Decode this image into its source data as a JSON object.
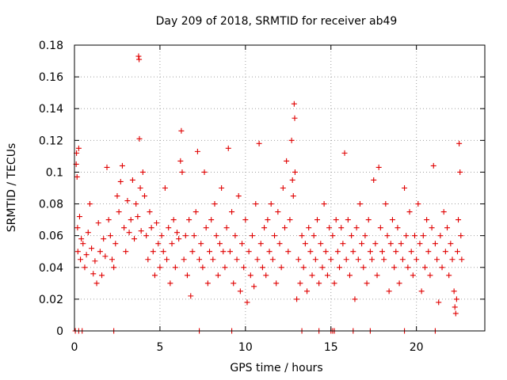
{
  "chart_data": {
    "type": "scatter",
    "title": "Day 209 of 2018, SRMTID for receiver ab49",
    "xlabel": "GPS time / hours",
    "ylabel": "SRMTID / TECUs",
    "xlim": [
      0,
      24
    ],
    "ylim": [
      0,
      0.18
    ],
    "x_ticks": [
      0,
      5,
      10,
      15,
      20
    ],
    "x_tick_labels": [
      "0",
      "5",
      "10",
      "15",
      "20"
    ],
    "y_ticks": [
      0,
      0.02,
      0.04,
      0.06,
      0.08,
      0.1,
      0.12,
      0.14,
      0.16,
      0.18
    ],
    "y_tick_labels": [
      "0",
      "0.02",
      "0.04",
      "0.06",
      "0.08",
      "0.1",
      "0.12",
      "0.14",
      "0.16",
      "0.18"
    ],
    "grid": true,
    "marker": "+",
    "series": [
      {
        "name": "SRMTID",
        "color": "#e00000",
        "points": [
          [
            0.1,
            0.105
          ],
          [
            0.12,
            0.112
          ],
          [
            0.15,
            0.097
          ],
          [
            0.18,
            0.065
          ],
          [
            0.2,
            0.05
          ],
          [
            0.25,
            0.115
          ],
          [
            0.3,
            0.072
          ],
          [
            0.35,
            0.045
          ],
          [
            0.4,
            0.058
          ],
          [
            0.5,
            0.055
          ],
          [
            0.6,
            0.04
          ],
          [
            0.7,
            0.048
          ],
          [
            0.8,
            0.062
          ],
          [
            0.9,
            0.08
          ],
          [
            1.0,
            0.052
          ],
          [
            1.1,
            0.036
          ],
          [
            1.2,
            0.044
          ],
          [
            1.3,
            0.03
          ],
          [
            1.4,
            0.068
          ],
          [
            1.5,
            0.05
          ],
          [
            1.6,
            0.035
          ],
          [
            1.7,
            0.058
          ],
          [
            1.8,
            0.047
          ],
          [
            1.9,
            0.103
          ],
          [
            2.0,
            0.07
          ],
          [
            2.1,
            0.06
          ],
          [
            2.2,
            0.045
          ],
          [
            2.3,
            0.04
          ],
          [
            2.4,
            0.055
          ],
          [
            2.5,
            0.085
          ],
          [
            2.6,
            0.075
          ],
          [
            2.7,
            0.094
          ],
          [
            2.8,
            0.104
          ],
          [
            2.9,
            0.065
          ],
          [
            3.0,
            0.05
          ],
          [
            3.1,
            0.082
          ],
          [
            3.2,
            0.062
          ],
          [
            3.3,
            0.07
          ],
          [
            3.4,
            0.095
          ],
          [
            3.5,
            0.058
          ],
          [
            3.6,
            0.08
          ],
          [
            3.7,
            0.072
          ],
          [
            3.75,
            0.173
          ],
          [
            3.78,
            0.171
          ],
          [
            3.8,
            0.121
          ],
          [
            3.85,
            0.09
          ],
          [
            3.9,
            0.063
          ],
          [
            4.0,
            0.1
          ],
          [
            4.1,
            0.085
          ],
          [
            4.2,
            0.06
          ],
          [
            4.3,
            0.045
          ],
          [
            4.4,
            0.075
          ],
          [
            4.5,
            0.065
          ],
          [
            4.6,
            0.05
          ],
          [
            4.7,
            0.035
          ],
          [
            4.8,
            0.068
          ],
          [
            4.9,
            0.055
          ],
          [
            5.0,
            0.04
          ],
          [
            5.1,
            0.06
          ],
          [
            5.2,
            0.05
          ],
          [
            5.3,
            0.09
          ],
          [
            5.4,
            0.045
          ],
          [
            5.5,
            0.065
          ],
          [
            5.6,
            0.03
          ],
          [
            5.7,
            0.055
          ],
          [
            5.8,
            0.07
          ],
          [
            5.9,
            0.04
          ],
          [
            6.0,
            0.062
          ],
          [
            6.1,
            0.058
          ],
          [
            6.2,
            0.107
          ],
          [
            6.25,
            0.126
          ],
          [
            6.3,
            0.1
          ],
          [
            6.4,
            0.045
          ],
          [
            6.5,
            0.06
          ],
          [
            6.6,
            0.035
          ],
          [
            6.7,
            0.07
          ],
          [
            6.8,
            0.022
          ],
          [
            6.9,
            0.05
          ],
          [
            7.0,
            0.06
          ],
          [
            7.1,
            0.075
          ],
          [
            7.2,
            0.113
          ],
          [
            7.3,
            0.045
          ],
          [
            7.4,
            0.055
          ],
          [
            7.5,
            0.04
          ],
          [
            7.6,
            0.1
          ],
          [
            7.7,
            0.065
          ],
          [
            7.8,
            0.03
          ],
          [
            7.9,
            0.05
          ],
          [
            8.0,
            0.07
          ],
          [
            8.1,
            0.045
          ],
          [
            8.2,
            0.08
          ],
          [
            8.3,
            0.06
          ],
          [
            8.4,
            0.035
          ],
          [
            8.5,
            0.055
          ],
          [
            8.6,
            0.09
          ],
          [
            8.7,
            0.05
          ],
          [
            8.8,
            0.04
          ],
          [
            8.9,
            0.065
          ],
          [
            9.0,
            0.115
          ],
          [
            9.1,
            0.05
          ],
          [
            9.2,
            0.075
          ],
          [
            9.3,
            0.03
          ],
          [
            9.4,
            0.06
          ],
          [
            9.5,
            0.045
          ],
          [
            9.6,
            0.085
          ],
          [
            9.7,
            0.025
          ],
          [
            9.8,
            0.055
          ],
          [
            9.9,
            0.04
          ],
          [
            10.0,
            0.07
          ],
          [
            10.1,
            0.018
          ],
          [
            10.2,
            0.05
          ],
          [
            10.3,
            0.035
          ],
          [
            10.4,
            0.06
          ],
          [
            10.5,
            0.028
          ],
          [
            10.6,
            0.08
          ],
          [
            10.7,
            0.045
          ],
          [
            10.8,
            0.118
          ],
          [
            10.9,
            0.055
          ],
          [
            11.0,
            0.04
          ],
          [
            11.1,
            0.065
          ],
          [
            11.2,
            0.035
          ],
          [
            11.3,
            0.07
          ],
          [
            11.4,
            0.05
          ],
          [
            11.5,
            0.08
          ],
          [
            11.6,
            0.045
          ],
          [
            11.7,
            0.06
          ],
          [
            11.8,
            0.03
          ],
          [
            11.9,
            0.075
          ],
          [
            12.0,
            0.055
          ],
          [
            12.1,
            0.04
          ],
          [
            12.2,
            0.09
          ],
          [
            12.3,
            0.065
          ],
          [
            12.4,
            0.107
          ],
          [
            12.5,
            0.05
          ],
          [
            12.6,
            0.07
          ],
          [
            12.7,
            0.12
          ],
          [
            12.75,
            0.095
          ],
          [
            12.8,
            0.085
          ],
          [
            12.85,
            0.143
          ],
          [
            12.88,
            0.134
          ],
          [
            12.9,
            0.1
          ],
          [
            13.0,
            0.02
          ],
          [
            13.1,
            0.045
          ],
          [
            13.2,
            0.03
          ],
          [
            13.3,
            0.06
          ],
          [
            13.4,
            0.04
          ],
          [
            13.5,
            0.055
          ],
          [
            13.6,
            0.025
          ],
          [
            13.7,
            0.065
          ],
          [
            13.8,
            0.05
          ],
          [
            13.9,
            0.035
          ],
          [
            14.0,
            0.06
          ],
          [
            14.1,
            0.045
          ],
          [
            14.2,
            0.07
          ],
          [
            14.3,
            0.03
          ],
          [
            14.4,
            0.055
          ],
          [
            14.5,
            0.04
          ],
          [
            14.6,
            0.08
          ],
          [
            14.7,
            0.05
          ],
          [
            14.8,
            0.035
          ],
          [
            14.9,
            0.065
          ],
          [
            15.0,
            0.045
          ],
          [
            15.1,
            0.06
          ],
          [
            15.2,
            0.03
          ],
          [
            15.3,
            0.07
          ],
          [
            15.4,
            0.05
          ],
          [
            15.5,
            0.04
          ],
          [
            15.6,
            0.065
          ],
          [
            15.7,
            0.055
          ],
          [
            15.8,
            0.112
          ],
          [
            15.9,
            0.045
          ],
          [
            16.0,
            0.07
          ],
          [
            16.1,
            0.035
          ],
          [
            16.2,
            0.06
          ],
          [
            16.3,
            0.05
          ],
          [
            16.4,
            0.02
          ],
          [
            16.5,
            0.065
          ],
          [
            16.6,
            0.045
          ],
          [
            16.7,
            0.08
          ],
          [
            16.8,
            0.055
          ],
          [
            16.9,
            0.04
          ],
          [
            17.0,
            0.06
          ],
          [
            17.1,
            0.03
          ],
          [
            17.2,
            0.07
          ],
          [
            17.3,
            0.05
          ],
          [
            17.4,
            0.045
          ],
          [
            17.5,
            0.095
          ],
          [
            17.6,
            0.055
          ],
          [
            17.7,
            0.035
          ],
          [
            17.8,
            0.103
          ],
          [
            17.9,
            0.065
          ],
          [
            18.0,
            0.05
          ],
          [
            18.1,
            0.045
          ],
          [
            18.2,
            0.08
          ],
          [
            18.3,
            0.06
          ],
          [
            18.4,
            0.025
          ],
          [
            18.5,
            0.055
          ],
          [
            18.6,
            0.07
          ],
          [
            18.7,
            0.04
          ],
          [
            18.8,
            0.05
          ],
          [
            18.9,
            0.065
          ],
          [
            19.0,
            0.03
          ],
          [
            19.1,
            0.055
          ],
          [
            19.2,
            0.045
          ],
          [
            19.3,
            0.09
          ],
          [
            19.4,
            0.06
          ],
          [
            19.5,
            0.04
          ],
          [
            19.6,
            0.075
          ],
          [
            19.7,
            0.05
          ],
          [
            19.8,
            0.035
          ],
          [
            19.9,
            0.06
          ],
          [
            20.0,
            0.045
          ],
          [
            20.1,
            0.08
          ],
          [
            20.2,
            0.055
          ],
          [
            20.3,
            0.025
          ],
          [
            20.4,
            0.06
          ],
          [
            20.5,
            0.04
          ],
          [
            20.6,
            0.07
          ],
          [
            20.7,
            0.05
          ],
          [
            20.8,
            0.035
          ],
          [
            20.9,
            0.065
          ],
          [
            21.0,
            0.104
          ],
          [
            21.1,
            0.055
          ],
          [
            21.2,
            0.045
          ],
          [
            21.3,
            0.018
          ],
          [
            21.4,
            0.06
          ],
          [
            21.5,
            0.04
          ],
          [
            21.6,
            0.075
          ],
          [
            21.7,
            0.05
          ],
          [
            21.8,
            0.065
          ],
          [
            21.9,
            0.035
          ],
          [
            22.0,
            0.055
          ],
          [
            22.1,
            0.045
          ],
          [
            22.2,
            0.025
          ],
          [
            22.25,
            0.015
          ],
          [
            22.3,
            0.011
          ],
          [
            22.35,
            0.02
          ],
          [
            22.4,
            0.05
          ],
          [
            22.45,
            0.07
          ],
          [
            22.5,
            0.118
          ],
          [
            22.55,
            0.1
          ],
          [
            22.6,
            0.06
          ],
          [
            22.65,
            0.045
          ]
        ],
        "zero_points": [
          0.05,
          0.25,
          0.45,
          2.3,
          7.3,
          9.2,
          13.3,
          14.3,
          15.0,
          15.1,
          15.2,
          16.3,
          17.3,
          19.3,
          21.1
        ]
      }
    ]
  }
}
